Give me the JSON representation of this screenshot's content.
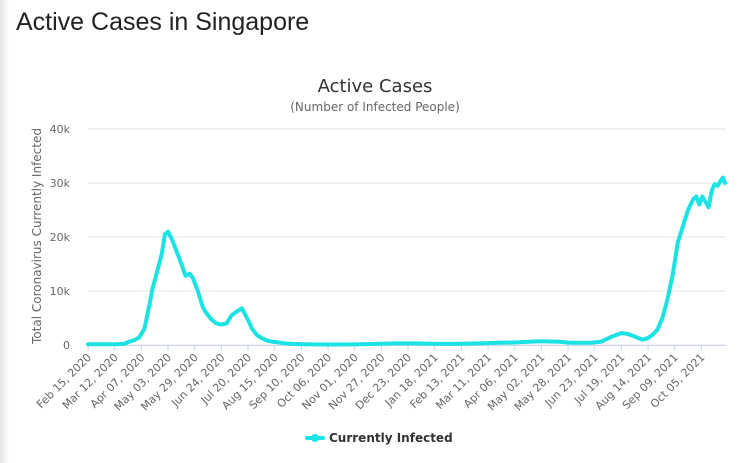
{
  "page": {
    "title": "Active Cases in Singapore"
  },
  "colors": {
    "series": "#1ce3e3",
    "grid": "#e6e6e6",
    "text": "#666666"
  },
  "chart_data": {
    "type": "line",
    "title": "Active Cases",
    "subtitle": "(Number of Infected People)",
    "xlabel": "",
    "ylabel": "Total Coronavirus Currently Infected",
    "ylim": [
      0,
      40000
    ],
    "yticks": [
      0,
      10000,
      20000,
      30000,
      40000
    ],
    "ytick_labels": [
      "0",
      "10k",
      "20k",
      "30k",
      "40k"
    ],
    "xtick_labels": [
      "Feb 15, 2020",
      "Mar 12, 2020",
      "Apr 07, 2020",
      "May 03, 2020",
      "May 29, 2020",
      "Jun 24, 2020",
      "Jul 20, 2020",
      "Aug 15, 2020",
      "Sep 10, 2020",
      "Oct 06, 2020",
      "Nov 01, 2020",
      "Nov 27, 2020",
      "Dec 23, 2020",
      "Jan 18, 2021",
      "Feb 13, 2021",
      "Mar 11, 2021",
      "Apr 06, 2021",
      "May 02, 2021",
      "May 28, 2021",
      "Jun 23, 2021",
      "Jul 19, 2021",
      "Aug 14, 2021",
      "Sep 09, 2021",
      "Oct 05, 2021"
    ],
    "x_start_day": 0,
    "x_tick_interval_days": 26,
    "x_end_day": 622,
    "legend": "bottom-center",
    "series": [
      {
        "name": "Currently Infected",
        "x": [
          0,
          25,
          35,
          40,
          45,
          50,
          55,
          60,
          63,
          68,
          72,
          75,
          78,
          82,
          85,
          88,
          92,
          95,
          99,
          102,
          107,
          112,
          115,
          120,
          125,
          130,
          135,
          140,
          145,
          150,
          155,
          160,
          165,
          170,
          175,
          180,
          185,
          190,
          195,
          200,
          210,
          220,
          230,
          240,
          260,
          280,
          300,
          320,
          340,
          360,
          380,
          400,
          420,
          440,
          460,
          470,
          480,
          490,
          500,
          510,
          520,
          525,
          530,
          535,
          540,
          545,
          550,
          555,
          560,
          565,
          570,
          575,
          580,
          585,
          590,
          593,
          596,
          599,
          602,
          605,
          608,
          611,
          614,
          617,
          619,
          621
        ],
        "values": [
          150,
          150,
          200,
          600,
          900,
          1400,
          3000,
          7500,
          10500,
          14000,
          17000,
          20500,
          21000,
          19500,
          18000,
          16500,
          14500,
          12800,
          13200,
          12500,
          10000,
          7000,
          6000,
          4800,
          4000,
          3800,
          4000,
          5500,
          6200,
          6800,
          5000,
          3000,
          1800,
          1200,
          800,
          600,
          500,
          350,
          250,
          200,
          150,
          120,
          100,
          100,
          120,
          200,
          300,
          300,
          200,
          200,
          300,
          400,
          500,
          700,
          600,
          400,
          400,
          400,
          600,
          1500,
          2200,
          2100,
          1800,
          1400,
          1000,
          1200,
          1800,
          2800,
          5000,
          8500,
          13000,
          19000,
          22000,
          25000,
          27000,
          27500,
          26000,
          27500,
          26500,
          25500,
          28500,
          29800,
          29500,
          30500,
          31000,
          30000
        ]
      }
    ]
  }
}
